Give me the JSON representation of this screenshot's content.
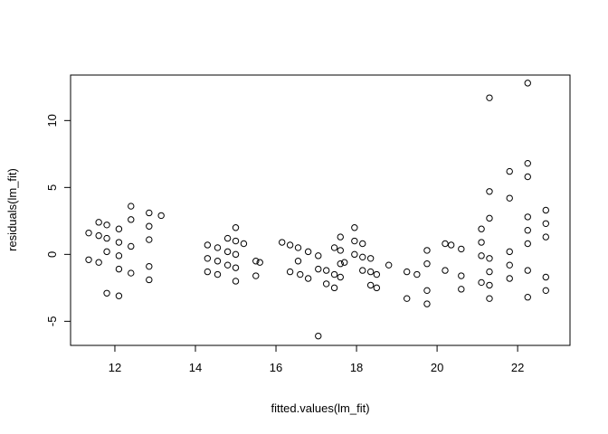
{
  "chart_data": {
    "type": "scatter",
    "title": "",
    "xlabel": "fitted.values(lm_fit)",
    "ylabel": "residuals(lm_fit)",
    "xlim": [
      10.9,
      23.3
    ],
    "ylim": [
      -6.8,
      13.4
    ],
    "x_ticks": [
      12,
      14,
      16,
      18,
      20,
      22
    ],
    "y_ticks": [
      -5,
      0,
      5,
      10
    ],
    "grid": false,
    "marker": "open-circle",
    "points": [
      [
        11.35,
        1.6
      ],
      [
        11.35,
        -0.4
      ],
      [
        11.6,
        2.4
      ],
      [
        11.6,
        1.4
      ],
      [
        11.6,
        -0.6
      ],
      [
        11.8,
        2.2
      ],
      [
        11.8,
        1.2
      ],
      [
        11.8,
        0.2
      ],
      [
        11.8,
        -2.9
      ],
      [
        12.1,
        1.9
      ],
      [
        12.1,
        0.9
      ],
      [
        12.1,
        -0.1
      ],
      [
        12.1,
        -1.1
      ],
      [
        12.1,
        -3.1
      ],
      [
        12.4,
        3.6
      ],
      [
        12.4,
        2.6
      ],
      [
        12.4,
        0.6
      ],
      [
        12.4,
        -1.4
      ],
      [
        12.85,
        3.1
      ],
      [
        12.85,
        2.1
      ],
      [
        12.85,
        1.1
      ],
      [
        12.85,
        -0.9
      ],
      [
        12.85,
        -1.9
      ],
      [
        13.15,
        2.9
      ],
      [
        14.3,
        0.7
      ],
      [
        14.3,
        -0.3
      ],
      [
        14.3,
        -1.3
      ],
      [
        14.55,
        0.5
      ],
      [
        14.55,
        -0.5
      ],
      [
        14.55,
        -1.5
      ],
      [
        14.8,
        1.2
      ],
      [
        14.8,
        0.2
      ],
      [
        14.8,
        -0.8
      ],
      [
        15.0,
        2.0
      ],
      [
        15.0,
        1.0
      ],
      [
        15.0,
        0.0
      ],
      [
        15.0,
        -1.0
      ],
      [
        15.0,
        -2.0
      ],
      [
        15.2,
        0.8
      ],
      [
        15.5,
        -0.5
      ],
      [
        15.5,
        -1.6
      ],
      [
        15.6,
        -0.6
      ],
      [
        16.15,
        0.9
      ],
      [
        16.35,
        0.7
      ],
      [
        16.35,
        -1.3
      ],
      [
        16.55,
        0.5
      ],
      [
        16.55,
        -0.5
      ],
      [
        16.6,
        -1.5
      ],
      [
        16.8,
        0.2
      ],
      [
        16.8,
        -1.8
      ],
      [
        17.05,
        -0.1
      ],
      [
        17.05,
        -1.1
      ],
      [
        17.05,
        -6.1
      ],
      [
        17.25,
        -1.2
      ],
      [
        17.25,
        -2.2
      ],
      [
        17.45,
        0.5
      ],
      [
        17.45,
        -1.5
      ],
      [
        17.45,
        -2.5
      ],
      [
        17.6,
        1.3
      ],
      [
        17.6,
        0.3
      ],
      [
        17.6,
        -0.7
      ],
      [
        17.6,
        -1.7
      ],
      [
        17.7,
        -0.6
      ],
      [
        17.95,
        2.0
      ],
      [
        17.95,
        1.0
      ],
      [
        17.95,
        0.0
      ],
      [
        18.15,
        0.8
      ],
      [
        18.15,
        -0.2
      ],
      [
        18.15,
        -1.2
      ],
      [
        18.35,
        -0.3
      ],
      [
        18.35,
        -1.3
      ],
      [
        18.35,
        -2.3
      ],
      [
        18.5,
        -1.5
      ],
      [
        18.5,
        -2.5
      ],
      [
        18.8,
        -0.8
      ],
      [
        19.25,
        -1.3
      ],
      [
        19.25,
        -3.3
      ],
      [
        19.5,
        -1.5
      ],
      [
        19.75,
        0.3
      ],
      [
        19.75,
        -0.7
      ],
      [
        19.75,
        -2.7
      ],
      [
        19.75,
        -3.7
      ],
      [
        20.2,
        0.8
      ],
      [
        20.2,
        -1.2
      ],
      [
        20.35,
        0.7
      ],
      [
        20.6,
        0.4
      ],
      [
        20.6,
        -1.6
      ],
      [
        20.6,
        -2.6
      ],
      [
        21.1,
        1.9
      ],
      [
        21.1,
        0.9
      ],
      [
        21.1,
        -0.1
      ],
      [
        21.1,
        -2.1
      ],
      [
        21.3,
        11.7
      ],
      [
        21.3,
        4.7
      ],
      [
        21.3,
        2.7
      ],
      [
        21.3,
        -0.3
      ],
      [
        21.3,
        -1.3
      ],
      [
        21.3,
        -2.3
      ],
      [
        21.3,
        -3.3
      ],
      [
        21.8,
        6.2
      ],
      [
        21.8,
        4.2
      ],
      [
        21.8,
        0.2
      ],
      [
        21.8,
        -0.8
      ],
      [
        21.8,
        -1.8
      ],
      [
        22.25,
        12.8
      ],
      [
        22.25,
        6.8
      ],
      [
        22.25,
        5.8
      ],
      [
        22.25,
        2.8
      ],
      [
        22.25,
        1.8
      ],
      [
        22.25,
        0.8
      ],
      [
        22.25,
        -1.2
      ],
      [
        22.25,
        -3.2
      ],
      [
        22.7,
        3.3
      ],
      [
        22.7,
        2.3
      ],
      [
        22.7,
        1.3
      ],
      [
        22.7,
        -1.7
      ],
      [
        22.7,
        -2.7
      ]
    ]
  }
}
